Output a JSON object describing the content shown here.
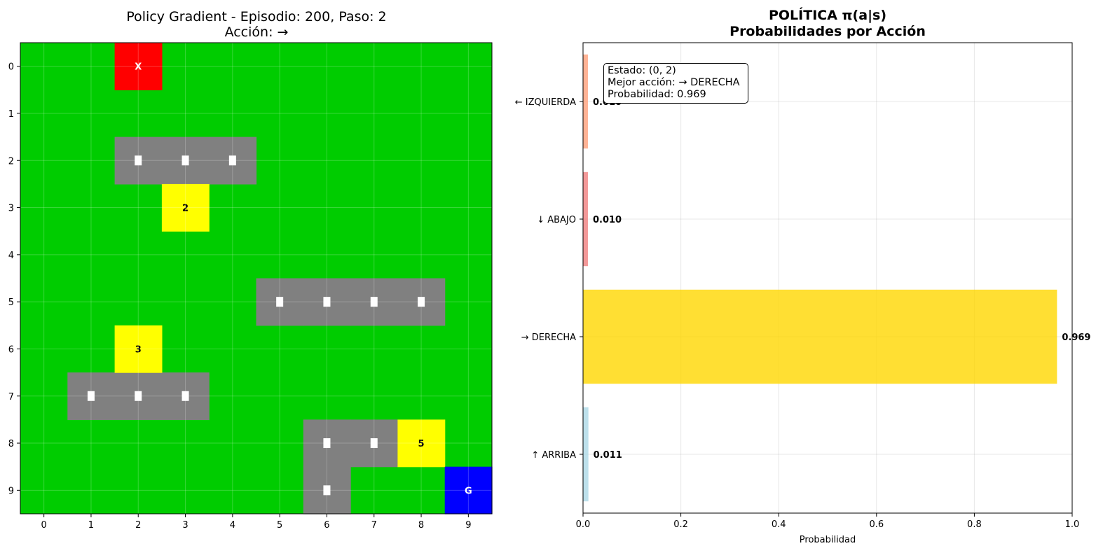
{
  "colors": {
    "free": "#00cc00",
    "wall": "#808080",
    "bonus": "#ffff00",
    "agent": "#ff0000",
    "goal": "#0000ff",
    "bar_up": "#add8e6",
    "bar_down": "#f08080",
    "bar_right": "#ffd700",
    "bar_left": "#ffa07a"
  },
  "grid_panel": {
    "title_line1": "Policy Gradient - Episodio: 200, Paso: 2",
    "title_line2": "Acción: →",
    "rows": 10,
    "cols": 10,
    "x_ticks": [
      "0",
      "1",
      "2",
      "3",
      "4",
      "5",
      "6",
      "7",
      "8",
      "9"
    ],
    "y_ticks": [
      "0",
      "1",
      "2",
      "3",
      "4",
      "5",
      "6",
      "7",
      "8",
      "9"
    ],
    "walls": [
      [
        2,
        2
      ],
      [
        2,
        3
      ],
      [
        2,
        4
      ],
      [
        5,
        5
      ],
      [
        5,
        6
      ],
      [
        5,
        7
      ],
      [
        5,
        8
      ],
      [
        7,
        1
      ],
      [
        7,
        2
      ],
      [
        7,
        3
      ],
      [
        8,
        6
      ],
      [
        8,
        7
      ],
      [
        9,
        6
      ]
    ],
    "bonuses": [
      {
        "row": 3,
        "col": 3,
        "label": "2"
      },
      {
        "row": 6,
        "col": 2,
        "label": "3"
      },
      {
        "row": 8,
        "col": 8,
        "label": "5"
      }
    ],
    "agent": {
      "row": 0,
      "col": 2,
      "label": "X"
    },
    "goal": {
      "row": 9,
      "col": 9,
      "label": "G"
    }
  },
  "chart_data": {
    "type": "bar",
    "orientation": "horizontal",
    "title_line1": "POLÍTICA π(a|s)",
    "title_line2": "Probabilidades por Acción",
    "xlabel": "Probabilidad",
    "xlim": [
      0,
      1.0
    ],
    "x_ticks": [
      "0.0",
      "0.2",
      "0.4",
      "0.6",
      "0.8",
      "1.0"
    ],
    "grid": true,
    "categories": [
      "↑ ARRIBA",
      "→ DERECHA",
      "↓ ABAJO",
      "← IZQUIERDA"
    ],
    "values": [
      0.011,
      0.969,
      0.01,
      0.01
    ],
    "value_labels": [
      "0.011",
      "0.969",
      "0.010",
      "0.010"
    ],
    "bar_colors": [
      "#add8e6",
      "#ffd700",
      "#f08080",
      "#ffa07a"
    ]
  },
  "info": {
    "line1": "Estado: (0, 2)",
    "line2": "Mejor acción: → DERECHA",
    "line3": "Probabilidad: 0.969"
  }
}
